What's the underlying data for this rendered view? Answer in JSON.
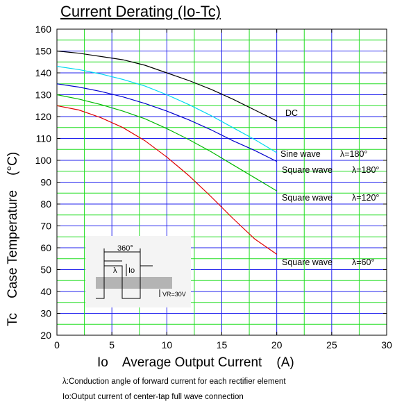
{
  "chart_data": {
    "type": "line",
    "title": "Current Derating  (Io-Tc)",
    "ylabel": "Tc    Case Temperature    (°C)",
    "xlabel": "Io    Average Output Current    (A)",
    "xlim": [
      0,
      30
    ],
    "ylim": [
      20,
      160
    ],
    "x_ticks": [
      0,
      5,
      10,
      15,
      20,
      25,
      30
    ],
    "y_ticks": [
      20,
      30,
      40,
      50,
      60,
      70,
      80,
      90,
      100,
      110,
      120,
      130,
      140,
      150,
      160
    ],
    "grid": true,
    "series": [
      {
        "name": "DC",
        "color": "#000000",
        "x": [
          0,
          2,
          4,
          6,
          8,
          10,
          12,
          14,
          16,
          18,
          20
        ],
        "y": [
          150,
          149,
          147.5,
          146,
          143.5,
          140,
          136.5,
          132.5,
          128,
          123,
          118
        ]
      },
      {
        "name": "Sine wave  λ=180°",
        "color": "#00d8f0",
        "x": [
          0,
          2,
          4,
          6,
          8,
          10,
          12,
          14,
          16,
          18,
          20
        ],
        "y": [
          143,
          141.5,
          139.5,
          137,
          134,
          130,
          125.5,
          120.5,
          115,
          109.5,
          103.5
        ]
      },
      {
        "name": "Square wave  λ=180°",
        "color": "#0000cc",
        "x": [
          0,
          2,
          4,
          6,
          8,
          10,
          12,
          14,
          16,
          18,
          20
        ],
        "y": [
          135,
          133.5,
          131.5,
          129,
          126,
          122.5,
          118.5,
          114,
          109,
          104.5,
          99.5
        ]
      },
      {
        "name": "Square wave  λ=120°",
        "color": "#00b800",
        "x": [
          0,
          2,
          4,
          6,
          8,
          10,
          12,
          14,
          16,
          18,
          20
        ],
        "y": [
          130,
          128,
          125.5,
          122.5,
          119,
          114.5,
          109.5,
          104,
          98,
          92,
          86
        ]
      },
      {
        "name": "Square wave  λ=60°",
        "color": "#e00000",
        "x": [
          0,
          2,
          4,
          6,
          8,
          10,
          12,
          14,
          16,
          18,
          20
        ],
        "y": [
          125,
          123,
          119.5,
          115,
          109,
          101.5,
          93,
          83.5,
          73.5,
          64,
          57
        ]
      }
    ],
    "labels": {
      "dc": "DC",
      "sine": "Sine wave",
      "sine_angle": "λ=180°",
      "sq180": "Square wave",
      "sq180_angle": "λ=180°",
      "sq120": "Square wave",
      "sq120_angle": "λ=120°",
      "sq60": "Square wave",
      "sq60_angle": "λ=60°"
    },
    "inset": {
      "period_label": "360°",
      "lambda_label": "λ",
      "io_label": "Io",
      "vr_label": "VR=30V"
    },
    "notes": [
      "λ:Conduction angle of forward current for each rectifier element",
      "Io:Output current of center-tap full wave connection"
    ]
  },
  "colors": {
    "grid_green": "#22dd22",
    "grid_blue": "#2222ee",
    "inset_bg": "#f4f4f4",
    "inset_band": "#b4b4b4"
  }
}
